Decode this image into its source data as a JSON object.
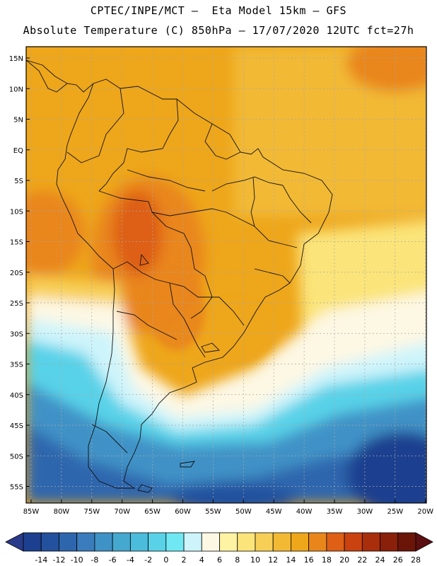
{
  "header": {
    "line1": "CPTEC/INPE/MCT –  Eta Model 15km – GFS",
    "line2": "Absolute Temperature (C) 850hPa – 17/07/2020 12UTC fct=27h"
  },
  "map": {
    "lat_labels": [
      "15N",
      "10N",
      "5N",
      "EQ",
      "5S",
      "10S",
      "15S",
      "20S",
      "25S",
      "30S",
      "35S",
      "40S",
      "45S",
      "50S",
      "55S"
    ],
    "lon_labels": [
      "85W",
      "80W",
      "75W",
      "70W",
      "65W",
      "60W",
      "55W",
      "50W",
      "45W",
      "40W",
      "35W",
      "30W",
      "25W",
      "20W"
    ],
    "grid": true
  },
  "colorbar": {
    "labels": [
      "-14",
      "-12",
      "-10",
      "-8",
      "-6",
      "-4",
      "-2",
      "0",
      "2",
      "4",
      "6",
      "8",
      "10",
      "12",
      "14",
      "16",
      "18",
      "20",
      "22",
      "24",
      "26",
      "28"
    ],
    "colors": [
      "#1d3f8f",
      "#24519e",
      "#2e66ad",
      "#3a7cbc",
      "#3f92c6",
      "#45a8cf",
      "#4bbcdb",
      "#59d2e8",
      "#6fe8f3",
      "#cdf4fb",
      "#fdf8e4",
      "#fdf3a3",
      "#fbe479",
      "#f7cf56",
      "#f2b935",
      "#eea61a",
      "#e9861b",
      "#de5f15",
      "#c9420f",
      "#a92e0b",
      "#8a1f0a",
      "#6b1509"
    ]
  }
}
